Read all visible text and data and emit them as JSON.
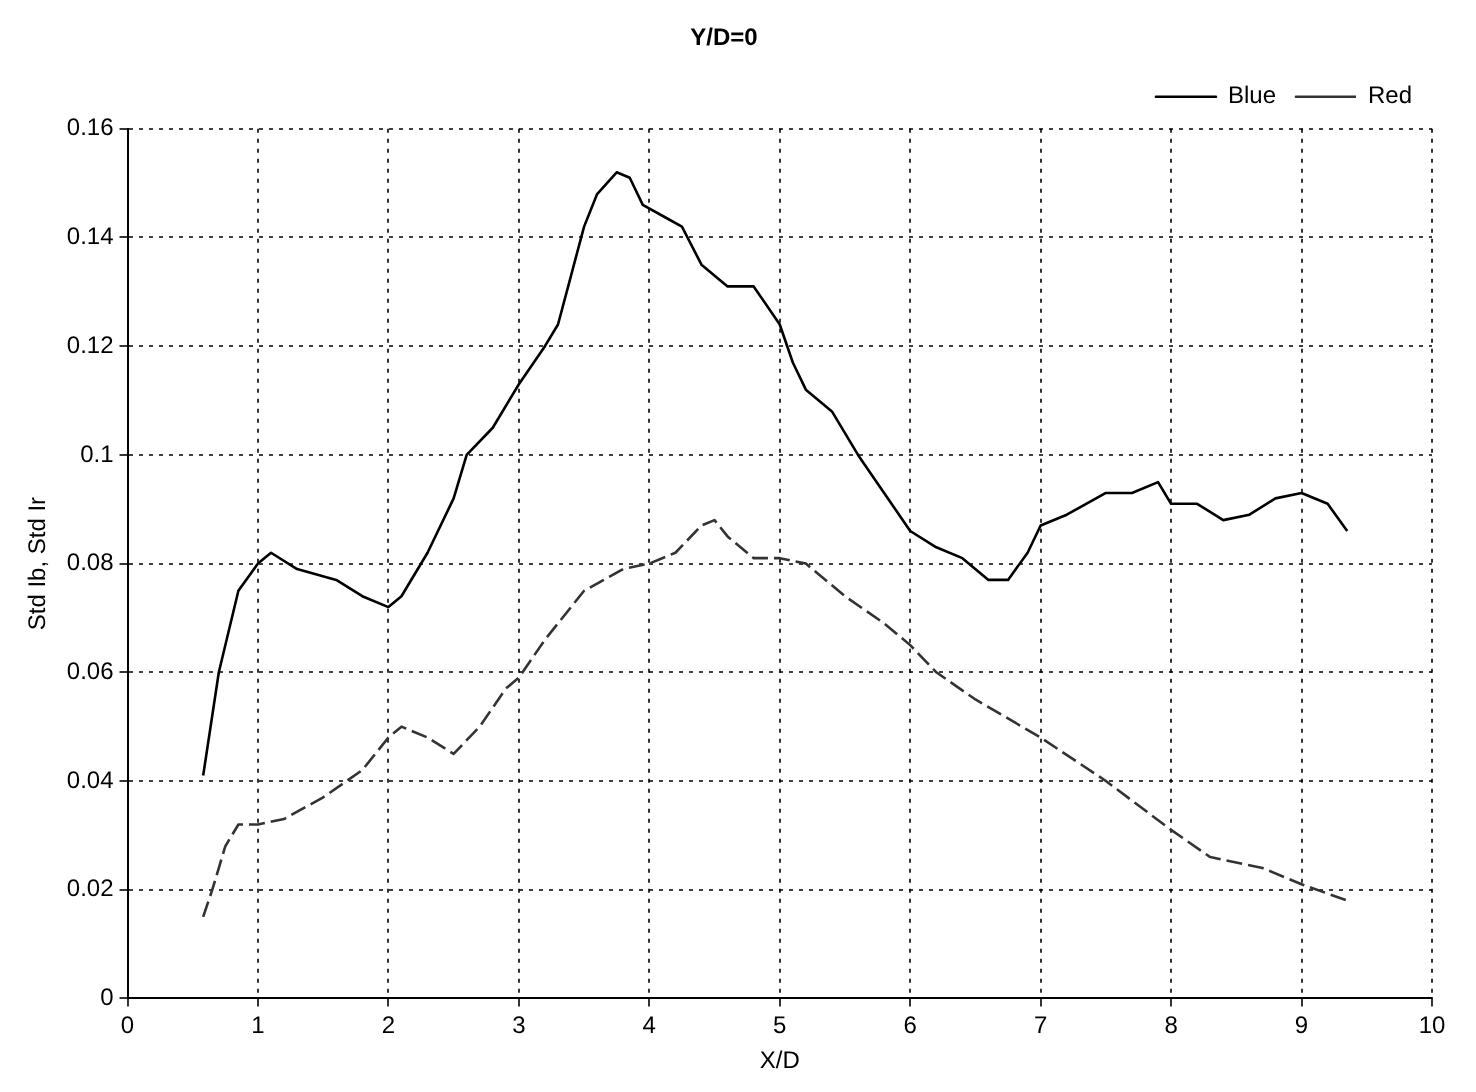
{
  "chart_data": {
    "type": "line",
    "title": "Y/D=0",
    "xlabel": "X/D",
    "ylabel": "Std Ib, Std Ir",
    "xlim": [
      0,
      10
    ],
    "xticks": [
      0,
      1,
      2,
      3,
      4,
      5,
      6,
      7,
      8,
      9,
      10
    ],
    "ylim": [
      0,
      0.16
    ],
    "yticks": [
      0,
      0.02,
      0.04,
      0.06,
      0.08,
      0.1,
      0.12,
      0.14,
      0.16
    ],
    "grid": true,
    "legend": "top right",
    "marker": "none",
    "series": [
      {
        "name": "Blue",
        "color": "#000000",
        "line_style": "solid",
        "x": [
          0.58,
          0.7,
          0.85,
          1.0,
          1.1,
          1.3,
          1.6,
          1.8,
          2.0,
          2.1,
          2.3,
          2.5,
          2.6,
          2.8,
          3.0,
          3.2,
          3.3,
          3.4,
          3.5,
          3.6,
          3.75,
          3.85,
          3.95,
          4.1,
          4.25,
          4.4,
          4.6,
          4.8,
          5.0,
          5.1,
          5.2,
          5.4,
          5.6,
          5.8,
          6.0,
          6.2,
          6.4,
          6.6,
          6.75,
          6.9,
          7.0,
          7.2,
          7.5,
          7.7,
          7.9,
          8.0,
          8.2,
          8.4,
          8.6,
          8.8,
          9.0,
          9.2,
          9.35
        ],
        "values": [
          0.041,
          0.06,
          0.075,
          0.08,
          0.082,
          0.079,
          0.077,
          0.074,
          0.072,
          0.074,
          0.082,
          0.092,
          0.1,
          0.105,
          0.113,
          0.12,
          0.124,
          0.133,
          0.142,
          0.148,
          0.152,
          0.151,
          0.146,
          0.144,
          0.142,
          0.135,
          0.131,
          0.131,
          0.124,
          0.117,
          0.112,
          0.108,
          0.1,
          0.093,
          0.086,
          0.083,
          0.081,
          0.077,
          0.077,
          0.082,
          0.087,
          0.089,
          0.093,
          0.093,
          0.095,
          0.091,
          0.091,
          0.088,
          0.089,
          0.092,
          0.093,
          0.091,
          0.086
        ]
      },
      {
        "name": "Red",
        "color": "#333333",
        "line_style": "dashed",
        "x": [
          0.58,
          0.65,
          0.75,
          0.85,
          1.0,
          1.2,
          1.5,
          1.8,
          2.0,
          2.1,
          2.3,
          2.5,
          2.7,
          2.9,
          3.0,
          3.2,
          3.5,
          3.8,
          4.0,
          4.2,
          4.4,
          4.5,
          4.6,
          4.8,
          5.0,
          5.2,
          5.5,
          5.8,
          6.0,
          6.2,
          6.5,
          7.0,
          7.5,
          8.0,
          8.3,
          8.7,
          9.0,
          9.35
        ],
        "values": [
          0.015,
          0.02,
          0.028,
          0.032,
          0.032,
          0.033,
          0.037,
          0.042,
          0.048,
          0.05,
          0.048,
          0.045,
          0.05,
          0.057,
          0.059,
          0.066,
          0.075,
          0.079,
          0.08,
          0.082,
          0.087,
          0.088,
          0.085,
          0.081,
          0.081,
          0.08,
          0.074,
          0.069,
          0.065,
          0.06,
          0.055,
          0.048,
          0.04,
          0.031,
          0.026,
          0.024,
          0.021,
          0.018
        ]
      }
    ]
  }
}
